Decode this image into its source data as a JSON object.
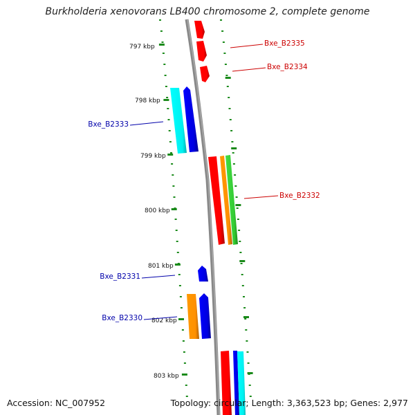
{
  "title": "Burkholderia xenovorans LB400 chromosome 2, complete genome",
  "footer": {
    "accession": "Accession: NC_007952",
    "summary": "Topology: circular; Length: 3,363,523 bp; Genes: 2,977"
  },
  "ticks": [
    "797 kbp",
    "798 kbp",
    "799 kbp",
    "800 kbp",
    "801 kbp",
    "802 kbp",
    "803 kbp"
  ],
  "gene_labels": [
    {
      "id": "b2335",
      "text": "Bxe_B2335",
      "strand": "forward"
    },
    {
      "id": "b2334",
      "text": "Bxe_B2334",
      "strand": "forward"
    },
    {
      "id": "b2333",
      "text": "Bxe_B2333",
      "strand": "reverse"
    },
    {
      "id": "b2332",
      "text": "Bxe_B2332",
      "strand": "forward"
    },
    {
      "id": "b2331",
      "text": "Bxe_B2331",
      "strand": "reverse"
    },
    {
      "id": "b2330",
      "text": "Bxe_B2330",
      "strand": "reverse"
    }
  ],
  "colors": {
    "backbone": "#888888",
    "tick": "#1a8a1a",
    "forward_label": "#cc0000",
    "reverse_label": "#0000aa",
    "cds_red": "#ff0000",
    "cds_blue": "#0000ee",
    "cds_cyan": "#00ffff",
    "cds_orange": "#ff9900",
    "cds_green": "#33cc33"
  }
}
